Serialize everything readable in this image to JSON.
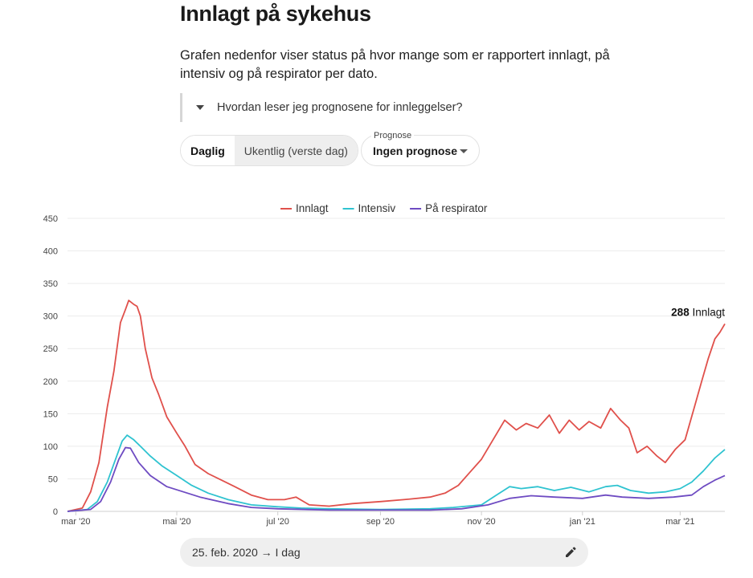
{
  "header": {
    "title": "Innlagt på sykehus",
    "description": "Grafen nedenfor viser status på hvor mange som er rapportert innlagt, på intensiv og på respirator per dato."
  },
  "accordion": {
    "label": "Hvordan leser jeg prognosene for innleggelser?",
    "icon": "caret-down-icon"
  },
  "toggle": {
    "daily_label": "Daglig",
    "weekly_label": "Ukentlig (verste dag)",
    "selected": "Daglig"
  },
  "prognose": {
    "label": "Prognose",
    "value": "Ingen prognose"
  },
  "date_range": {
    "text": "25. feb. 2020 → I dag",
    "icon": "pencil-icon"
  },
  "colors": {
    "innlagt": "#e0504b",
    "intensiv": "#2fc3d0",
    "respirator": "#6e4bc2",
    "grid": "#ececec",
    "axis": "#cfcfcf"
  },
  "chart_data": {
    "type": "line",
    "x_ticks": [
      "mar '20",
      "mai '20",
      "jul '20",
      "sep '20",
      "nov '20",
      "jan '21",
      "mar '21"
    ],
    "x_tick_dates": [
      "2020-03-01",
      "2020-05-01",
      "2020-07-01",
      "2020-09-01",
      "2020-11-01",
      "2021-01-01",
      "2021-03-01"
    ],
    "x_range": [
      "2020-02-25",
      "2021-03-28"
    ],
    "y_ticks": [
      0,
      50,
      100,
      150,
      200,
      250,
      300,
      350,
      400,
      450
    ],
    "ylim": [
      0,
      450
    ],
    "grid": true,
    "legend_position": "top-center",
    "annotation": {
      "value": "288",
      "text": "Innlagt"
    },
    "series": [
      {
        "name": "Innlagt",
        "color": "#e0504b",
        "points": [
          [
            "2020-02-25",
            0
          ],
          [
            "2020-03-05",
            5
          ],
          [
            "2020-03-10",
            30
          ],
          [
            "2020-03-15",
            75
          ],
          [
            "2020-03-20",
            160
          ],
          [
            "2020-03-24",
            215
          ],
          [
            "2020-03-28",
            290
          ],
          [
            "2020-03-31",
            310
          ],
          [
            "2020-04-02",
            324
          ],
          [
            "2020-04-05",
            318
          ],
          [
            "2020-04-07",
            315
          ],
          [
            "2020-04-09",
            300
          ],
          [
            "2020-04-12",
            250
          ],
          [
            "2020-04-16",
            205
          ],
          [
            "2020-04-20",
            180
          ],
          [
            "2020-04-25",
            145
          ],
          [
            "2020-05-01",
            120
          ],
          [
            "2020-05-06",
            100
          ],
          [
            "2020-05-12",
            72
          ],
          [
            "2020-05-20",
            58
          ],
          [
            "2020-05-28",
            48
          ],
          [
            "2020-06-05",
            38
          ],
          [
            "2020-06-15",
            25
          ],
          [
            "2020-06-25",
            18
          ],
          [
            "2020-07-05",
            18
          ],
          [
            "2020-07-12",
            22
          ],
          [
            "2020-07-20",
            10
          ],
          [
            "2020-08-01",
            8
          ],
          [
            "2020-08-15",
            12
          ],
          [
            "2020-09-01",
            15
          ],
          [
            "2020-09-15",
            18
          ],
          [
            "2020-10-01",
            22
          ],
          [
            "2020-10-10",
            28
          ],
          [
            "2020-10-18",
            40
          ],
          [
            "2020-10-25",
            60
          ],
          [
            "2020-11-01",
            80
          ],
          [
            "2020-11-08",
            110
          ],
          [
            "2020-11-15",
            140
          ],
          [
            "2020-11-22",
            125
          ],
          [
            "2020-11-28",
            135
          ],
          [
            "2020-12-05",
            128
          ],
          [
            "2020-12-12",
            148
          ],
          [
            "2020-12-18",
            120
          ],
          [
            "2020-12-24",
            140
          ],
          [
            "2020-12-30",
            125
          ],
          [
            "2021-01-05",
            138
          ],
          [
            "2021-01-12",
            128
          ],
          [
            "2021-01-18",
            158
          ],
          [
            "2021-01-24",
            140
          ],
          [
            "2021-01-29",
            128
          ],
          [
            "2021-02-03",
            90
          ],
          [
            "2021-02-09",
            100
          ],
          [
            "2021-02-15",
            85
          ],
          [
            "2021-02-20",
            75
          ],
          [
            "2021-02-26",
            95
          ],
          [
            "2021-03-04",
            110
          ],
          [
            "2021-03-09",
            155
          ],
          [
            "2021-03-14",
            200
          ],
          [
            "2021-03-18",
            235
          ],
          [
            "2021-03-22",
            265
          ],
          [
            "2021-03-25",
            275
          ],
          [
            "2021-03-28",
            288
          ]
        ]
      },
      {
        "name": "Intensiv",
        "color": "#2fc3d0",
        "points": [
          [
            "2020-02-25",
            0
          ],
          [
            "2020-03-08",
            3
          ],
          [
            "2020-03-14",
            15
          ],
          [
            "2020-03-20",
            45
          ],
          [
            "2020-03-25",
            80
          ],
          [
            "2020-03-29",
            108
          ],
          [
            "2020-04-01",
            117
          ],
          [
            "2020-04-05",
            110
          ],
          [
            "2020-04-09",
            100
          ],
          [
            "2020-04-15",
            85
          ],
          [
            "2020-04-22",
            70
          ],
          [
            "2020-05-01",
            55
          ],
          [
            "2020-05-10",
            40
          ],
          [
            "2020-05-20",
            28
          ],
          [
            "2020-06-01",
            18
          ],
          [
            "2020-06-15",
            10
          ],
          [
            "2020-07-01",
            7
          ],
          [
            "2020-07-15",
            5
          ],
          [
            "2020-08-01",
            4
          ],
          [
            "2020-09-01",
            3
          ],
          [
            "2020-10-01",
            4
          ],
          [
            "2020-10-15",
            6
          ],
          [
            "2020-11-01",
            10
          ],
          [
            "2020-11-10",
            25
          ],
          [
            "2020-11-18",
            38
          ],
          [
            "2020-11-25",
            35
          ],
          [
            "2020-12-05",
            38
          ],
          [
            "2020-12-15",
            32
          ],
          [
            "2020-12-25",
            37
          ],
          [
            "2021-01-05",
            30
          ],
          [
            "2021-01-15",
            38
          ],
          [
            "2021-01-22",
            40
          ],
          [
            "2021-01-30",
            32
          ],
          [
            "2021-02-10",
            28
          ],
          [
            "2021-02-20",
            30
          ],
          [
            "2021-03-01",
            35
          ],
          [
            "2021-03-08",
            45
          ],
          [
            "2021-03-15",
            62
          ],
          [
            "2021-03-22",
            82
          ],
          [
            "2021-03-28",
            95
          ]
        ]
      },
      {
        "name": "På respirator",
        "color": "#6e4bc2",
        "points": [
          [
            "2020-02-25",
            0
          ],
          [
            "2020-03-10",
            3
          ],
          [
            "2020-03-16",
            15
          ],
          [
            "2020-03-22",
            45
          ],
          [
            "2020-03-27",
            80
          ],
          [
            "2020-03-31",
            98
          ],
          [
            "2020-04-03",
            97
          ],
          [
            "2020-04-08",
            75
          ],
          [
            "2020-04-15",
            55
          ],
          [
            "2020-04-25",
            38
          ],
          [
            "2020-05-05",
            30
          ],
          [
            "2020-05-15",
            22
          ],
          [
            "2020-06-01",
            12
          ],
          [
            "2020-06-15",
            6
          ],
          [
            "2020-07-01",
            4
          ],
          [
            "2020-08-01",
            2
          ],
          [
            "2020-09-01",
            2
          ],
          [
            "2020-10-01",
            2
          ],
          [
            "2020-10-20",
            4
          ],
          [
            "2020-11-05",
            10
          ],
          [
            "2020-11-18",
            20
          ],
          [
            "2020-12-01",
            24
          ],
          [
            "2020-12-15",
            22
          ],
          [
            "2021-01-01",
            20
          ],
          [
            "2021-01-15",
            25
          ],
          [
            "2021-01-25",
            22
          ],
          [
            "2021-02-10",
            20
          ],
          [
            "2021-02-25",
            22
          ],
          [
            "2021-03-08",
            25
          ],
          [
            "2021-03-15",
            38
          ],
          [
            "2021-03-22",
            48
          ],
          [
            "2021-03-28",
            55
          ]
        ]
      }
    ]
  }
}
